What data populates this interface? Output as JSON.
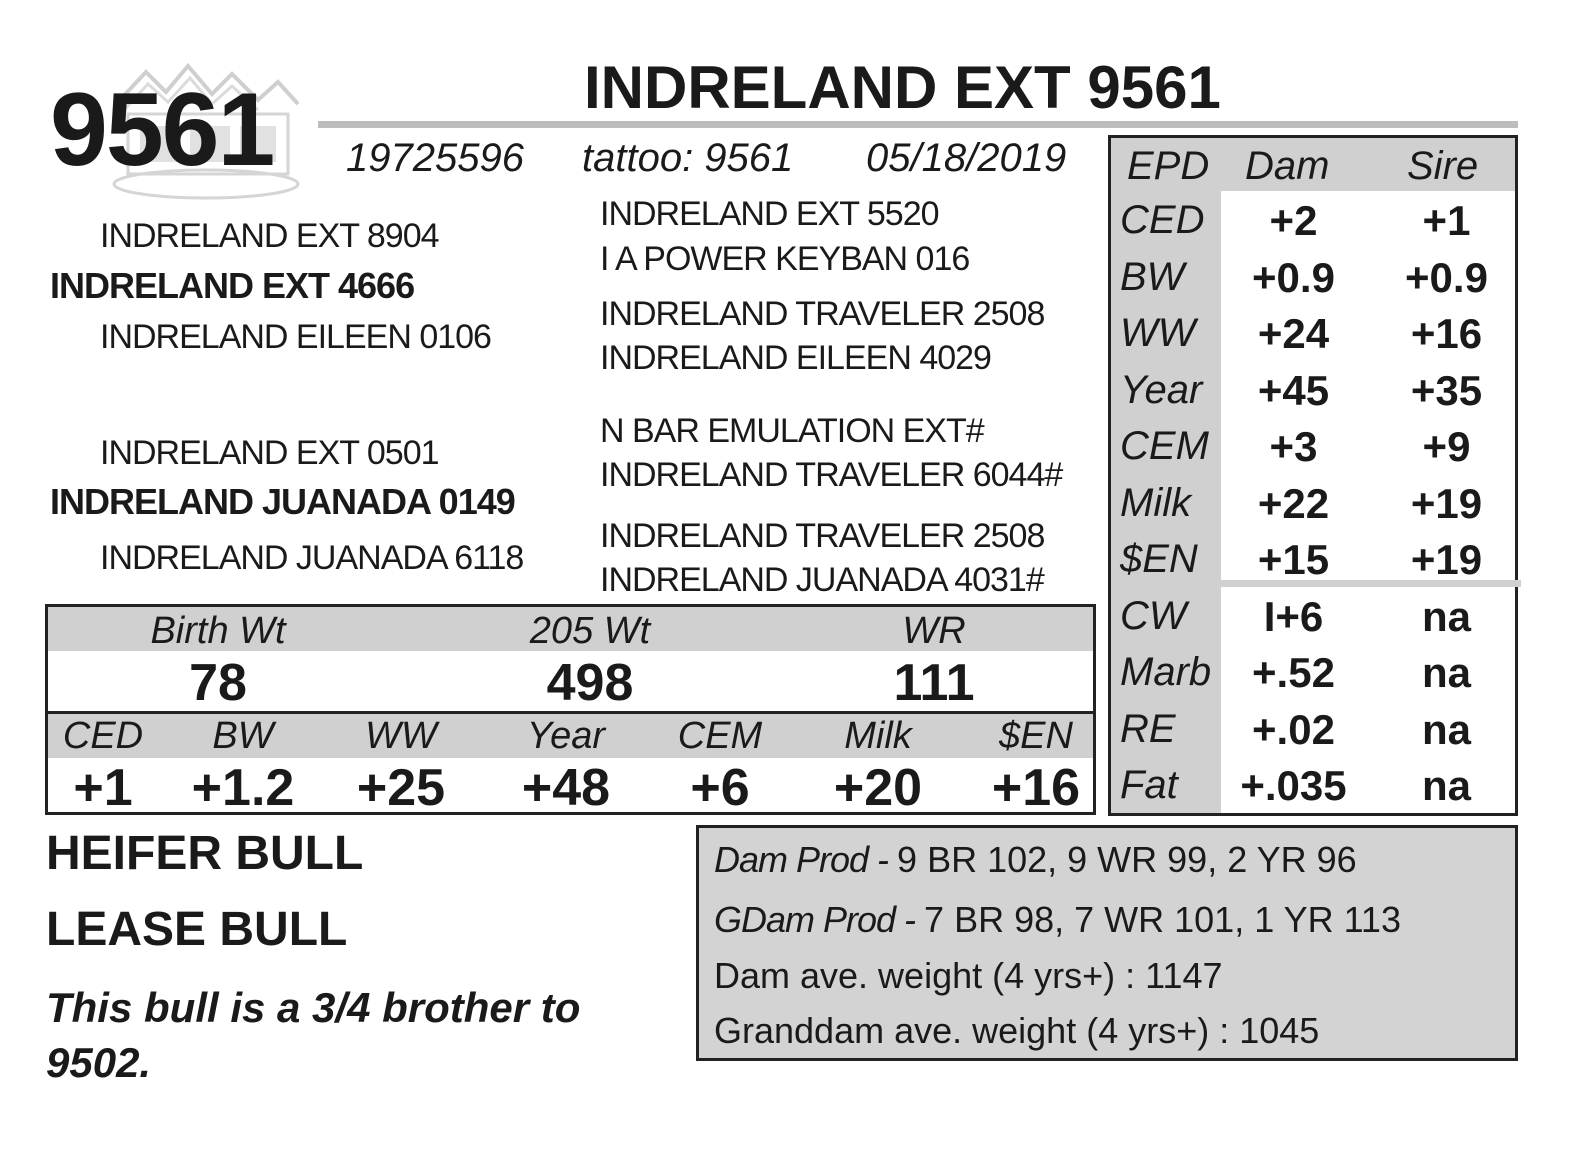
{
  "header": {
    "lot_number": "9561",
    "name": "INDRELAND EXT 9561",
    "registration": "19725596",
    "tattoo": "tattoo: 9561",
    "birth_date": "05/18/2019"
  },
  "pedigree": {
    "sire": "INDRELAND EXT 4666",
    "sire_sire": "INDRELAND EXT 8904",
    "sire_dam": "INDRELAND EILEEN 0106",
    "sire_sire_sire": "INDRELAND EXT 5520",
    "sire_sire_dam": "I A POWER KEYBAN 016",
    "sire_dam_sire": "INDRELAND TRAVELER 2508",
    "sire_dam_dam": "INDRELAND EILEEN 4029",
    "dam": "INDRELAND JUANADA 0149",
    "dam_sire": "INDRELAND EXT 0501",
    "dam_dam": "INDRELAND JUANADA 6118",
    "dam_sire_sire": "N BAR EMULATION EXT#",
    "dam_sire_dam": "INDRELAND TRAVELER 6044#",
    "dam_dam_sire": "INDRELAND TRAVELER 2508",
    "dam_dam_dam": "INDRELAND JUANADA 4031#"
  },
  "performance": {
    "headers": [
      "Birth Wt",
      "205 Wt",
      "WR"
    ],
    "values": [
      "78",
      "498",
      "111"
    ]
  },
  "own_epd": {
    "headers": [
      "CED",
      "BW",
      "WW",
      "Year",
      "CEM",
      "Milk",
      "$EN"
    ],
    "values": [
      "+1",
      "+1.2",
      "+25",
      "+48",
      "+6",
      "+20",
      "+16"
    ]
  },
  "epd_table": {
    "col_epd": "EPD",
    "col_dam": "Dam",
    "col_sire": "Sire",
    "rows": [
      {
        "label": "CED",
        "dam": "+2",
        "sire": "+1"
      },
      {
        "label": "BW",
        "dam": "+0.9",
        "sire": "+0.9"
      },
      {
        "label": "WW",
        "dam": "+24",
        "sire": "+16"
      },
      {
        "label": "Year",
        "dam": "+45",
        "sire": "+35"
      },
      {
        "label": "CEM",
        "dam": "+3",
        "sire": "+9"
      },
      {
        "label": "Milk",
        "dam": "+22",
        "sire": "+19"
      },
      {
        "label": "$EN",
        "dam": "+15",
        "sire": "+19"
      },
      {
        "label": "CW",
        "dam": "I+6",
        "sire": "na"
      },
      {
        "label": "Marb",
        "dam": "+.52",
        "sire": "na"
      },
      {
        "label": "RE",
        "dam": "+.02",
        "sire": "na"
      },
      {
        "label": "Fat",
        "dam": "+.035",
        "sire": "na"
      }
    ]
  },
  "notes": {
    "line1": "HEIFER BULL",
    "line2": "LEASE BULL",
    "comment": "This bull is a 3/4 brother to 9502."
  },
  "production": {
    "dam_label": "Dam Prod - ",
    "dam_value": "9 BR 102, 9 WR 99, 2 YR 96",
    "gdam_label": "GDam Prod - ",
    "gdam_value": "7 BR 98, 7 WR 101, 1 YR 113",
    "dam_weight": "Dam ave. weight (4 yrs+) : 1147",
    "granddam_weight": "Granddam ave. weight (4 yrs+) : 1045"
  }
}
